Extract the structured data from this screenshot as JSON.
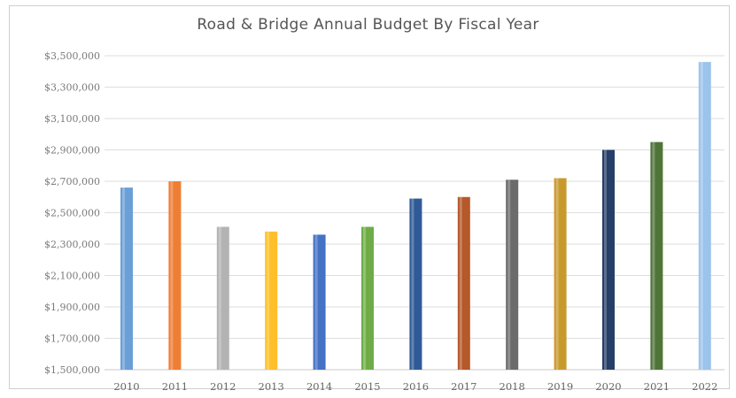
{
  "chart_data": {
    "type": "bar",
    "title": "Road & Bridge Annual Budget By Fiscal Year",
    "xlabel": "",
    "ylabel": "",
    "categories": [
      "2010",
      "2011",
      "2012",
      "2013",
      "2014",
      "2015",
      "2016",
      "2017",
      "2018",
      "2019",
      "2020",
      "2021",
      "2022"
    ],
    "values": [
      2660000,
      2700000,
      2410000,
      2380000,
      2360000,
      2410000,
      2590000,
      2600000,
      2710000,
      2720000,
      2900000,
      2950000,
      3460000
    ],
    "colors": [
      "#6a9fd8",
      "#ef7e35",
      "#b3b3b3",
      "#ffbf2a",
      "#4472c4",
      "#6fac47",
      "#2f5a97",
      "#b5582a",
      "#6b6b6b",
      "#c89a2e",
      "#263f68",
      "#4f7438",
      "#9cc3ec"
    ],
    "ylim": [
      1500000,
      3500000
    ],
    "yticks": [
      1500000,
      1700000,
      1900000,
      2100000,
      2300000,
      2500000,
      2700000,
      2900000,
      3100000,
      3300000,
      3500000
    ],
    "ytick_labels": [
      "$1,500,000",
      "$1,700,000",
      "$1,900,000",
      "$2,100,000",
      "$2,300,000",
      "$2,500,000",
      "$2,700,000",
      "$2,900,000",
      "$3,100,000",
      "$3,300,000",
      "$3,500,000"
    ],
    "grid": true,
    "legend": "none"
  }
}
